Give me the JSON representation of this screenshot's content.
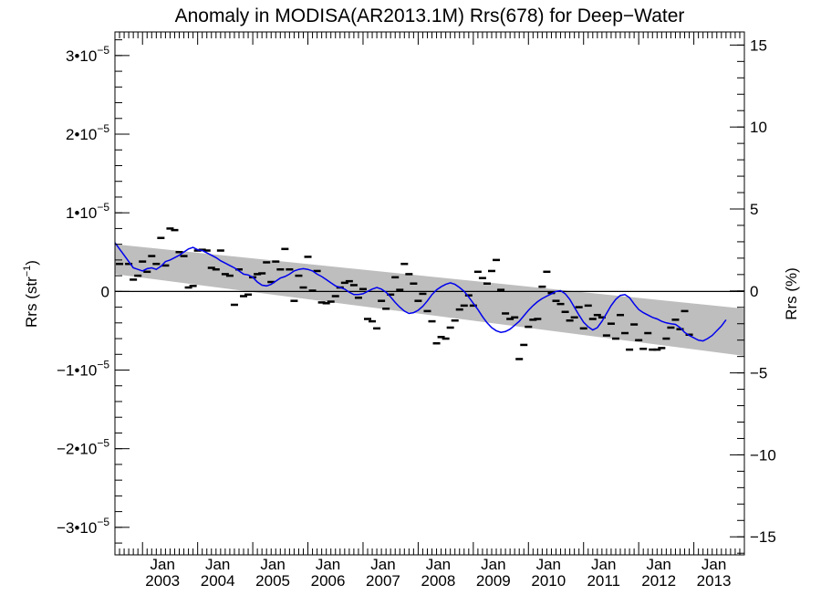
{
  "chart_data": {
    "type": "line",
    "title": "Anomaly in MODISA(AR2013.1M) Rrs(678) for Deep−Water",
    "ylabel": "Rrs (str",
    "ylabel_sup": "−1",
    "ylabel_close": ")",
    "y2label": "Rrs (%)",
    "xlim": [
      "2002-07",
      "2013-12"
    ],
    "ylim": [
      -3.35e-05,
      3.3e-05
    ],
    "y2lim": [
      -16.1,
      15.8
    ],
    "grid": false,
    "yticks": [
      {
        "value": -3e-05,
        "mant": "−3•10",
        "exp": "−5"
      },
      {
        "value": -2e-05,
        "mant": "−2•10",
        "exp": "−5"
      },
      {
        "value": -1e-05,
        "mant": "−1•10",
        "exp": "−5"
      },
      {
        "value": 0,
        "mant": "0",
        "exp": ""
      },
      {
        "value": 1e-05,
        "mant": "1•10",
        "exp": "−5"
      },
      {
        "value": 2e-05,
        "mant": "2•10",
        "exp": "−5"
      },
      {
        "value": 3e-05,
        "mant": "3•10",
        "exp": "−5"
      }
    ],
    "y2ticks": [
      {
        "value": -15,
        "label": "−15"
      },
      {
        "value": -10,
        "label": "−10"
      },
      {
        "value": -5,
        "label": "−5"
      },
      {
        "value": 0,
        "label": "0"
      },
      {
        "value": 5,
        "label": "5"
      },
      {
        "value": 10,
        "label": "10"
      },
      {
        "value": 15,
        "label": "15"
      }
    ],
    "xticks": [
      {
        "date": "2003-01",
        "month": "Jan",
        "year": "2003"
      },
      {
        "date": "2004-01",
        "month": "Jan",
        "year": "2004"
      },
      {
        "date": "2005-01",
        "month": "Jan",
        "year": "2005"
      },
      {
        "date": "2006-01",
        "month": "Jan",
        "year": "2006"
      },
      {
        "date": "2007-01",
        "month": "Jan",
        "year": "2007"
      },
      {
        "date": "2008-01",
        "month": "Jan",
        "year": "2008"
      },
      {
        "date": "2009-01",
        "month": "Jan",
        "year": "2009"
      },
      {
        "date": "2010-01",
        "month": "Jan",
        "year": "2010"
      },
      {
        "date": "2011-01",
        "month": "Jan",
        "year": "2011"
      },
      {
        "date": "2012-01",
        "month": "Jan",
        "year": "2012"
      },
      {
        "date": "2013-01",
        "month": "Jan",
        "year": "2013"
      }
    ],
    "trend_band": {
      "start_date": "2002-07",
      "end_date": "2013-12",
      "start_low": 2.2e-06,
      "start_high": 6e-06,
      "end_low": -8.2e-06,
      "end_high": -2.2e-06
    },
    "zero_line": 0,
    "series": [
      {
        "color": "#0000ee",
        "points": [
          [
            "2002-07",
            6.2e-06
          ],
          [
            "2002-08",
            5.4e-06
          ],
          [
            "2002-09",
            4.6e-06
          ],
          [
            "2002-10",
            3.8e-06
          ],
          [
            "2002-11",
            3e-06
          ],
          [
            "2002-12",
            2.8e-06
          ],
          [
            "2003-01",
            2.6e-06
          ],
          [
            "2003-02",
            2.9e-06
          ],
          [
            "2003-03",
            3e-06
          ],
          [
            "2003-04",
            2.8e-06
          ],
          [
            "2003-05",
            3.2e-06
          ],
          [
            "2003-06",
            3.8e-06
          ],
          [
            "2003-07",
            4e-06
          ],
          [
            "2003-08",
            4.3e-06
          ],
          [
            "2003-09",
            4.6e-06
          ],
          [
            "2003-10",
            5e-06
          ],
          [
            "2003-11",
            5.4e-06
          ],
          [
            "2003-12",
            5.6e-06
          ],
          [
            "2004-01",
            5.3e-06
          ],
          [
            "2004-02",
            5.2e-06
          ],
          [
            "2004-03",
            4.9e-06
          ],
          [
            "2004-04",
            4.6e-06
          ],
          [
            "2004-05",
            4.3e-06
          ],
          [
            "2004-06",
            3.9e-06
          ],
          [
            "2004-07",
            3.6e-06
          ],
          [
            "2004-08",
            3.3e-06
          ],
          [
            "2004-09",
            3e-06
          ],
          [
            "2004-10",
            2.6e-06
          ],
          [
            "2004-11",
            2.2e-06
          ],
          [
            "2004-12",
            2.1e-06
          ],
          [
            "2005-01",
            1.8e-06
          ],
          [
            "2005-02",
            1.2e-06
          ],
          [
            "2005-03",
            8e-07
          ],
          [
            "2005-04",
            7e-07
          ],
          [
            "2005-05",
            9e-07
          ],
          [
            "2005-06",
            1.3e-06
          ],
          [
            "2005-07",
            1.7e-06
          ],
          [
            "2005-08",
            1.9e-06
          ],
          [
            "2005-09",
            2.2e-06
          ],
          [
            "2005-10",
            2.6e-06
          ],
          [
            "2005-11",
            2.8e-06
          ],
          [
            "2005-12",
            2.9e-06
          ],
          [
            "2006-01",
            2.8e-06
          ],
          [
            "2006-02",
            2.6e-06
          ],
          [
            "2006-03",
            2.2e-06
          ],
          [
            "2006-04",
            1.9e-06
          ],
          [
            "2006-05",
            1.5e-06
          ],
          [
            "2006-06",
            1.1e-06
          ],
          [
            "2006-07",
            7e-07
          ],
          [
            "2006-08",
            5e-07
          ],
          [
            "2006-09",
            3e-07
          ],
          [
            "2006-10",
            -1e-07
          ],
          [
            "2006-11",
            -4e-07
          ],
          [
            "2006-12",
            -4e-07
          ],
          [
            "2007-01",
            -3e-07
          ],
          [
            "2007-02",
            0.0
          ],
          [
            "2007-03",
            3e-07
          ],
          [
            "2007-04",
            5e-07
          ],
          [
            "2007-05",
            3e-07
          ],
          [
            "2007-06",
            -1e-07
          ],
          [
            "2007-07",
            -7e-07
          ],
          [
            "2007-08",
            -1.4e-06
          ],
          [
            "2007-09",
            -2e-06
          ],
          [
            "2007-10",
            -2.5e-06
          ],
          [
            "2007-11",
            -2.8e-06
          ],
          [
            "2007-12",
            -2.7e-06
          ],
          [
            "2008-01",
            -2.4e-06
          ],
          [
            "2008-02",
            -1.9e-06
          ],
          [
            "2008-03",
            -1.2e-06
          ],
          [
            "2008-04",
            -4e-07
          ],
          [
            "2008-05",
            2e-07
          ],
          [
            "2008-06",
            6e-07
          ],
          [
            "2008-07",
            9e-07
          ],
          [
            "2008-08",
            1.1e-06
          ],
          [
            "2008-09",
            9e-07
          ],
          [
            "2008-10",
            5e-07
          ],
          [
            "2008-11",
            0.0
          ],
          [
            "2008-12",
            -7e-07
          ],
          [
            "2009-01",
            -1.5e-06
          ],
          [
            "2009-02",
            -2.3e-06
          ],
          [
            "2009-03",
            -3.2e-06
          ],
          [
            "2009-04",
            -4e-06
          ],
          [
            "2009-05",
            -4.6e-06
          ],
          [
            "2009-06",
            -5e-06
          ],
          [
            "2009-07",
            -5.2e-06
          ],
          [
            "2009-08",
            -5.1e-06
          ],
          [
            "2009-09",
            -4.8e-06
          ],
          [
            "2009-10",
            -4.3e-06
          ],
          [
            "2009-11",
            -3.8e-06
          ],
          [
            "2009-12",
            -3.1e-06
          ],
          [
            "2010-01",
            -2.4e-06
          ],
          [
            "2010-02",
            -1.8e-06
          ],
          [
            "2010-03",
            -1.3e-06
          ],
          [
            "2010-04",
            -9e-07
          ],
          [
            "2010-05",
            -6e-07
          ],
          [
            "2010-06",
            -3e-07
          ],
          [
            "2010-07",
            0.0
          ],
          [
            "2010-08",
            1e-07
          ],
          [
            "2010-09",
            -3e-07
          ],
          [
            "2010-10",
            -1e-06
          ],
          [
            "2010-11",
            -2e-06
          ],
          [
            "2010-12",
            -3e-06
          ],
          [
            "2011-01",
            -3.9e-06
          ],
          [
            "2011-02",
            -4.5e-06
          ],
          [
            "2011-03",
            -4.9e-06
          ],
          [
            "2011-04",
            -4.6e-06
          ],
          [
            "2011-05",
            -3.8e-06
          ],
          [
            "2011-06",
            -2.8e-06
          ],
          [
            "2011-07",
            -1.8e-06
          ],
          [
            "2011-08",
            -1e-06
          ],
          [
            "2011-09",
            -5e-07
          ],
          [
            "2011-10",
            -4e-07
          ],
          [
            "2011-11",
            -8e-07
          ],
          [
            "2011-12",
            -1.6e-06
          ],
          [
            "2012-01",
            -2.3e-06
          ],
          [
            "2012-02",
            -2.7e-06
          ],
          [
            "2012-03",
            -3e-06
          ],
          [
            "2012-04",
            -3.3e-06
          ],
          [
            "2012-05",
            -3.5e-06
          ],
          [
            "2012-06",
            -3.8e-06
          ],
          [
            "2012-07",
            -4e-06
          ],
          [
            "2012-08",
            -4.1e-06
          ],
          [
            "2012-09",
            -4.2e-06
          ],
          [
            "2012-10",
            -4.6e-06
          ],
          [
            "2012-11",
            -5.2e-06
          ],
          [
            "2012-12",
            -5.6e-06
          ],
          [
            "2013-01",
            -5.9e-06
          ],
          [
            "2013-02",
            -6.2e-06
          ],
          [
            "2013-03",
            -6.3e-06
          ],
          [
            "2013-04",
            -6e-06
          ],
          [
            "2013-05",
            -5.6e-06
          ],
          [
            "2013-06",
            -5e-06
          ],
          [
            "2013-07",
            -4.4e-06
          ],
          [
            "2013-08",
            -3.6e-06
          ]
        ]
      }
    ],
    "monthly_points": [
      [
        "2002-08",
        3.5e-06
      ],
      [
        "2002-10",
        3.5e-06
      ],
      [
        "2002-11",
        1.5e-06
      ],
      [
        "2002-12",
        2e-06
      ],
      [
        "2003-01",
        3.8e-06
      ],
      [
        "2003-02",
        2.5e-06
      ],
      [
        "2003-03",
        4.5e-06
      ],
      [
        "2003-04",
        3.5e-06
      ],
      [
        "2003-05",
        6.8e-06
      ],
      [
        "2003-06",
        3.3e-06
      ],
      [
        "2003-07",
        8e-06
      ],
      [
        "2003-08",
        7.8e-06
      ],
      [
        "2003-09",
        5e-06
      ],
      [
        "2003-10",
        4.5e-06
      ],
      [
        "2003-11",
        5e-07
      ],
      [
        "2003-12",
        7e-07
      ],
      [
        "2004-01",
        5.2e-06
      ],
      [
        "2004-02",
        5.3e-06
      ],
      [
        "2004-03",
        5.2e-06
      ],
      [
        "2004-04",
        3e-06
      ],
      [
        "2004-05",
        2.8e-06
      ],
      [
        "2004-06",
        5.2e-06
      ],
      [
        "2004-07",
        2.2e-06
      ],
      [
        "2004-08",
        2e-06
      ],
      [
        "2004-09",
        -1.7e-06
      ],
      [
        "2004-10",
        2.8e-06
      ],
      [
        "2004-11",
        -6e-07
      ],
      [
        "2004-12",
        -4e-07
      ],
      [
        "2005-01",
        1.8e-06
      ],
      [
        "2005-02",
        2.2e-06
      ],
      [
        "2005-03",
        2.3e-06
      ],
      [
        "2005-04",
        3.7e-06
      ],
      [
        "2005-05",
        1.2e-06
      ],
      [
        "2005-06",
        3.8e-06
      ],
      [
        "2005-07",
        2.8e-06
      ],
      [
        "2005-08",
        5.4e-06
      ],
      [
        "2005-09",
        2.8e-06
      ],
      [
        "2005-10",
        -1.2e-06
      ],
      [
        "2005-11",
        2e-06
      ],
      [
        "2005-12",
        5e-07
      ],
      [
        "2006-01",
        4.4e-06
      ],
      [
        "2006-02",
        1e-07
      ],
      [
        "2006-03",
        2.6e-06
      ],
      [
        "2006-04",
        -1.4e-06
      ],
      [
        "2006-05",
        -1.5e-06
      ],
      [
        "2006-06",
        -1.3e-06
      ],
      [
        "2006-07",
        -6e-07
      ],
      [
        "2006-08",
        5e-07
      ],
      [
        "2006-09",
        1.1e-06
      ],
      [
        "2006-10",
        1.3e-06
      ],
      [
        "2006-11",
        8e-07
      ],
      [
        "2006-12",
        -8e-07
      ],
      [
        "2007-01",
        3e-07
      ],
      [
        "2007-02",
        -3.5e-06
      ],
      [
        "2007-03",
        -3.8e-06
      ],
      [
        "2007-04",
        -4.7e-06
      ],
      [
        "2007-05",
        -1.2e-06
      ],
      [
        "2007-06",
        -2.2e-06
      ],
      [
        "2007-07",
        -4e-07
      ],
      [
        "2007-08",
        1.8e-06
      ],
      [
        "2007-09",
        2e-07
      ],
      [
        "2007-10",
        3.5e-06
      ],
      [
        "2007-11",
        2.2e-06
      ],
      [
        "2007-12",
        1e-06
      ],
      [
        "2008-01",
        -1.2e-06
      ],
      [
        "2008-02",
        -3e-07
      ],
      [
        "2008-03",
        -2.5e-06
      ],
      [
        "2008-04",
        -3.8e-06
      ],
      [
        "2008-05",
        -6.6e-06
      ],
      [
        "2008-06",
        -5.8e-06
      ],
      [
        "2008-07",
        -6e-06
      ],
      [
        "2008-08",
        -4.6e-06
      ],
      [
        "2008-09",
        -3.7e-06
      ],
      [
        "2008-10",
        -2.3e-06
      ],
      [
        "2008-11",
        -1.8e-06
      ],
      [
        "2008-12",
        -5e-07
      ],
      [
        "2009-01",
        -1.8e-06
      ],
      [
        "2009-02",
        2.5e-06
      ],
      [
        "2009-03",
        1.7e-06
      ],
      [
        "2009-04",
        1e-06
      ],
      [
        "2009-05",
        2.6e-06
      ],
      [
        "2009-06",
        4e-06
      ],
      [
        "2009-07",
        2e-07
      ],
      [
        "2009-08",
        -2.8e-06
      ],
      [
        "2009-09",
        -3.5e-06
      ],
      [
        "2009-10",
        -3.3e-06
      ],
      [
        "2009-11",
        -8.6e-06
      ],
      [
        "2009-12",
        -6.8e-06
      ],
      [
        "2010-01",
        -4.5e-06
      ],
      [
        "2010-02",
        -3.6e-06
      ],
      [
        "2010-03",
        -3.5e-06
      ],
      [
        "2010-04",
        6e-07
      ],
      [
        "2010-05",
        2.5e-06
      ],
      [
        "2010-06",
        -2e-07
      ],
      [
        "2010-07",
        -1.2e-06
      ],
      [
        "2010-08",
        -1.6e-06
      ],
      [
        "2010-09",
        -2.6e-06
      ],
      [
        "2010-10",
        -3.7e-06
      ],
      [
        "2010-11",
        -3.3e-06
      ],
      [
        "2010-12",
        -2e-06
      ],
      [
        "2011-01",
        -4.7e-06
      ],
      [
        "2011-02",
        -1.8e-06
      ],
      [
        "2011-03",
        -3.5e-06
      ],
      [
        "2011-04",
        -3e-06
      ],
      [
        "2011-05",
        -3.3e-06
      ],
      [
        "2011-06",
        -5.6e-06
      ],
      [
        "2011-07",
        -4.1e-06
      ],
      [
        "2011-08",
        -6e-06
      ],
      [
        "2011-09",
        -3e-06
      ],
      [
        "2011-10",
        -5.3e-06
      ],
      [
        "2011-11",
        -7.4e-06
      ],
      [
        "2011-12",
        -4.2e-06
      ],
      [
        "2012-01",
        -6.2e-06
      ],
      [
        "2012-02",
        -7.3e-06
      ],
      [
        "2012-03",
        -5.3e-06
      ],
      [
        "2012-04",
        -7.4e-06
      ],
      [
        "2012-05",
        -7.4e-06
      ],
      [
        "2012-06",
        -7.2e-06
      ],
      [
        "2012-07",
        -6e-06
      ],
      [
        "2012-08",
        -4.6e-06
      ],
      [
        "2012-09",
        -3.6e-06
      ],
      [
        "2012-10",
        -4.8e-06
      ],
      [
        "2012-11",
        -2.5e-06
      ],
      [
        "2012-12",
        -5.5e-06
      ]
    ]
  }
}
